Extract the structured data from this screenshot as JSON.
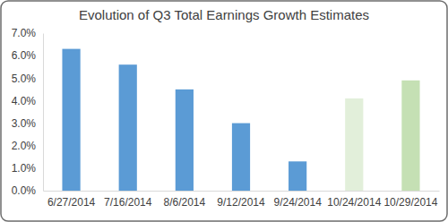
{
  "chart_data": {
    "type": "bar",
    "title": "Evolution of Q3 Total Earnings Growth Estimates",
    "categories": [
      "6/27/2014",
      "7/16/2014",
      "8/6/2014",
      "9/12/2014",
      "9/24/2014",
      "10/24/2014",
      "10/29/2014"
    ],
    "values": [
      6.3,
      5.6,
      4.5,
      3.0,
      1.3,
      4.1,
      4.9
    ],
    "colors": [
      "#5b9bd5",
      "#5b9bd5",
      "#5b9bd5",
      "#5b9bd5",
      "#5b9bd5",
      "#e2efda",
      "#c5e0b4"
    ],
    "ylim": [
      0,
      7
    ],
    "yticks": [
      {
        "value": 0,
        "label": "0.0%"
      },
      {
        "value": 1,
        "label": "1.0%"
      },
      {
        "value": 2,
        "label": "2.0%"
      },
      {
        "value": 3,
        "label": "3.0%"
      },
      {
        "value": 4,
        "label": "4.0%"
      },
      {
        "value": 5,
        "label": "5.0%"
      },
      {
        "value": 6,
        "label": "6.0%"
      },
      {
        "value": 7,
        "label": "7.0%"
      }
    ],
    "grid": false
  }
}
